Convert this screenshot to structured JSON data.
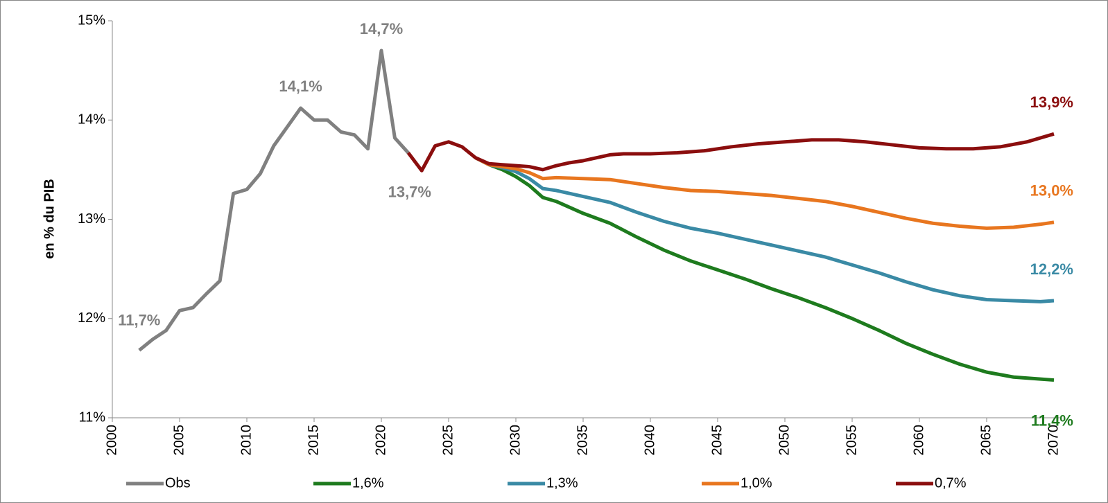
{
  "chart_data": {
    "type": "line",
    "y_label": "en % du PIB",
    "xlim": [
      2000,
      2070
    ],
    "xticks": [
      2000,
      2005,
      2010,
      2015,
      2020,
      2025,
      2030,
      2035,
      2040,
      2045,
      2050,
      2055,
      2060,
      2065,
      2070
    ],
    "ylim": [
      11,
      15
    ],
    "yticks": [
      {
        "value": 11,
        "label": "11%"
      },
      {
        "value": 12,
        "label": "12%"
      },
      {
        "value": 13,
        "label": "13%"
      },
      {
        "value": 14,
        "label": "14%"
      },
      {
        "value": 15,
        "label": "15%"
      }
    ],
    "grid": false,
    "legend": "bottom",
    "series": [
      {
        "name": "Obs",
        "color": "#808080",
        "x": [
          2002,
          2003,
          2004,
          2005,
          2006,
          2007,
          2008,
          2009,
          2010,
          2011,
          2012,
          2013,
          2014,
          2015,
          2016,
          2017,
          2018,
          2019,
          2020,
          2021,
          2022
        ],
        "values": [
          11.68,
          11.79,
          11.88,
          12.08,
          12.11,
          12.25,
          12.38,
          13.26,
          13.3,
          13.46,
          13.74,
          13.93,
          14.12,
          14.0,
          14.0,
          13.88,
          13.85,
          13.71,
          14.7,
          13.82,
          13.67
        ],
        "value_labels": [
          "11,7%",
          null,
          null,
          null,
          null,
          null,
          null,
          null,
          null,
          null,
          null,
          null,
          "14,1%",
          null,
          null,
          null,
          null,
          null,
          "14,7%",
          null,
          "13,7%"
        ]
      },
      {
        "name": "1,6%",
        "color": "#1e7b1e",
        "x": [
          2027,
          2028,
          2029,
          2030,
          2031,
          2032,
          2033,
          2034,
          2035,
          2037,
          2039,
          2041,
          2043,
          2045,
          2047,
          2049,
          2051,
          2053,
          2055,
          2057,
          2059,
          2061,
          2063,
          2065,
          2067,
          2069,
          2070
        ],
        "values": [
          13.62,
          13.55,
          13.5,
          13.43,
          13.34,
          13.22,
          13.18,
          13.12,
          13.06,
          12.96,
          12.82,
          12.69,
          12.58,
          12.49,
          12.4,
          12.3,
          12.21,
          12.11,
          12.0,
          11.88,
          11.75,
          11.64,
          11.54,
          11.46,
          11.41,
          11.39,
          11.38
        ],
        "value_labels": [
          null,
          null,
          null,
          null,
          null,
          null,
          null,
          null,
          null,
          null,
          null,
          null,
          null,
          null,
          null,
          null,
          null,
          null,
          null,
          null,
          null,
          null,
          null,
          null,
          null,
          null,
          "11,4%"
        ]
      },
      {
        "name": "1,3%",
        "color": "#3a8aa5",
        "x": [
          2027,
          2028,
          2029,
          2030,
          2031,
          2032,
          2033,
          2035,
          2037,
          2039,
          2041,
          2043,
          2045,
          2047,
          2049,
          2051,
          2053,
          2055,
          2057,
          2059,
          2061,
          2063,
          2065,
          2067,
          2069,
          2070
        ],
        "values": [
          13.62,
          13.55,
          13.52,
          13.48,
          13.41,
          13.31,
          13.29,
          13.23,
          13.17,
          13.07,
          12.98,
          12.91,
          12.86,
          12.8,
          12.74,
          12.68,
          12.62,
          12.54,
          12.46,
          12.37,
          12.29,
          12.23,
          12.19,
          12.18,
          12.17,
          12.18
        ],
        "value_labels": [
          null,
          null,
          null,
          null,
          null,
          null,
          null,
          null,
          null,
          null,
          null,
          null,
          null,
          null,
          null,
          null,
          null,
          null,
          null,
          null,
          null,
          null,
          null,
          null,
          null,
          "12,2%"
        ]
      },
      {
        "name": "1,0%",
        "color": "#e8761f",
        "x": [
          2027,
          2028,
          2029,
          2030,
          2031,
          2032,
          2033,
          2035,
          2037,
          2039,
          2041,
          2043,
          2045,
          2047,
          2049,
          2051,
          2053,
          2055,
          2057,
          2059,
          2061,
          2063,
          2065,
          2067,
          2069,
          2070
        ],
        "values": [
          13.62,
          13.55,
          13.53,
          13.51,
          13.47,
          13.41,
          13.42,
          13.41,
          13.4,
          13.36,
          13.32,
          13.29,
          13.28,
          13.26,
          13.24,
          13.21,
          13.18,
          13.13,
          13.07,
          13.01,
          12.96,
          12.93,
          12.91,
          12.92,
          12.95,
          12.97
        ],
        "value_labels": [
          null,
          null,
          null,
          null,
          null,
          null,
          null,
          null,
          null,
          null,
          null,
          null,
          null,
          null,
          null,
          null,
          null,
          null,
          null,
          null,
          null,
          null,
          null,
          null,
          null,
          "13,0%"
        ]
      },
      {
        "name": "0,7%",
        "color": "#8b0e0e",
        "x": [
          2022,
          2023,
          2024,
          2025,
          2026,
          2027,
          2028,
          2029,
          2030,
          2031,
          2032,
          2033,
          2034,
          2035,
          2036,
          2037,
          2038,
          2040,
          2042,
          2044,
          2046,
          2048,
          2050,
          2052,
          2054,
          2056,
          2058,
          2060,
          2062,
          2064,
          2066,
          2068,
          2070
        ],
        "values": [
          13.67,
          13.49,
          13.74,
          13.78,
          13.73,
          13.62,
          13.56,
          13.55,
          13.54,
          13.53,
          13.5,
          13.54,
          13.57,
          13.59,
          13.62,
          13.65,
          13.66,
          13.66,
          13.67,
          13.69,
          13.73,
          13.76,
          13.78,
          13.8,
          13.8,
          13.78,
          13.75,
          13.72,
          13.71,
          13.71,
          13.73,
          13.78,
          13.86
        ],
        "value_labels": [
          null,
          null,
          null,
          null,
          null,
          null,
          null,
          null,
          null,
          null,
          null,
          null,
          null,
          null,
          null,
          null,
          null,
          null,
          null,
          null,
          null,
          null,
          null,
          null,
          null,
          null,
          null,
          null,
          null,
          null,
          null,
          null,
          "13,9%"
        ]
      }
    ]
  }
}
